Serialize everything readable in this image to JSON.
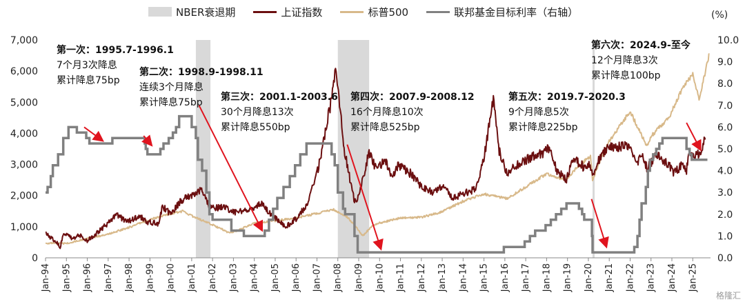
{
  "legend": {
    "recession": "NBER衰退期",
    "sse": "上证指数",
    "sp500": "标普500",
    "fed": "联邦基金目标利率（右轴）"
  },
  "right_unit": "(%)",
  "colors": {
    "recession": "#d9d9d9",
    "sse": "#6b0f10",
    "sp500": "#d8b98a",
    "fed": "#808080",
    "arrow": "#e0141e"
  },
  "annotations": [
    {
      "title": "第一次：1995.7-1996.1",
      "lines": [
        "7个月3次降息",
        "累计降息75bp"
      ]
    },
    {
      "title": "第二次：1998.9-1998.11",
      "lines": [
        "连续3个月降息",
        "累计降息75bp"
      ]
    },
    {
      "title": "第三次：2001.1-2003.6",
      "lines": [
        "30个月降息13次",
        "累计降息550bp"
      ]
    },
    {
      "title": "第四次：2007.9-2008.12",
      "lines": [
        "16个月降息10次",
        "累计降息525bp"
      ]
    },
    {
      "title": "第五次：2019.7-2020.3",
      "lines": [
        "9个月降息5次",
        "累计降息225bp"
      ]
    },
    {
      "title": "第六次：2024.9-至今",
      "lines": [
        "12个月降息3次",
        "累计降息100bp"
      ]
    }
  ],
  "watermark": "格隆汇",
  "chart_data": {
    "type": "line",
    "x_ticks": [
      "Jan-94",
      "Jan-95",
      "Jan-96",
      "Jan-97",
      "Jan-98",
      "Jan-99",
      "Jan-00",
      "Jan-01",
      "Jan-02",
      "Jan-03",
      "Jan-04",
      "Jan-05",
      "Jan-06",
      "Jan-07",
      "Jan-08",
      "Jan-09",
      "Jan-10",
      "Jan-11",
      "Jan-12",
      "Jan-13",
      "Jan-14",
      "Jan-15",
      "Jan-16",
      "Jan-17",
      "Jan-18",
      "Jan-19",
      "Jan-20",
      "Jan-21",
      "Jan-22",
      "Jan-23",
      "Jan-24",
      "Jan-25"
    ],
    "left_axis": {
      "ylim": [
        0,
        7000
      ],
      "ticks": [
        "0",
        "1,000",
        "2,000",
        "3,000",
        "4,000",
        "5,000",
        "6,000",
        "7,000"
      ]
    },
    "right_axis": {
      "ylim": [
        0,
        10
      ],
      "ticks": [
        "0.0",
        "1.0",
        "2.0",
        "3.0",
        "4.0",
        "5.0",
        "6.0",
        "7.0",
        "8.0",
        "9.0",
        "10.0"
      ]
    },
    "recessions": [
      [
        2001.2,
        2001.9
      ],
      [
        2008.0,
        2009.5
      ],
      [
        2020.2,
        2020.3
      ]
    ],
    "series": [
      {
        "name": "上证指数",
        "axis": "left",
        "points": [
          [
            1994.0,
            780
          ],
          [
            1994.5,
            520
          ],
          [
            1994.7,
            350
          ],
          [
            1994.9,
            800
          ],
          [
            1995.3,
            620
          ],
          [
            1995.6,
            750
          ],
          [
            1996.0,
            550
          ],
          [
            1996.5,
            820
          ],
          [
            1996.9,
            1050
          ],
          [
            1997.4,
            1400
          ],
          [
            1997.9,
            1150
          ],
          [
            1998.5,
            1350
          ],
          [
            1998.9,
            1150
          ],
          [
            1999.4,
            1100
          ],
          [
            1999.6,
            1650
          ],
          [
            2000.0,
            1400
          ],
          [
            2000.5,
            1850
          ],
          [
            2001.0,
            2000
          ],
          [
            2001.45,
            2200
          ],
          [
            2001.8,
            1700
          ],
          [
            2002.2,
            1600
          ],
          [
            2002.5,
            1650
          ],
          [
            2003.0,
            1450
          ],
          [
            2003.5,
            1500
          ],
          [
            2004.0,
            1600
          ],
          [
            2004.3,
            1750
          ],
          [
            2004.8,
            1400
          ],
          [
            2005.3,
            1100
          ],
          [
            2005.5,
            1000
          ],
          [
            2006.0,
            1250
          ],
          [
            2006.5,
            1700
          ],
          [
            2007.0,
            2700
          ],
          [
            2007.4,
            4000
          ],
          [
            2007.8,
            5500
          ],
          [
            2007.92,
            6100
          ],
          [
            2008.3,
            3500
          ],
          [
            2008.8,
            1800
          ],
          [
            2009.0,
            1950
          ],
          [
            2009.5,
            3400
          ],
          [
            2009.8,
            2900
          ],
          [
            2010.3,
            3100
          ],
          [
            2010.6,
            2500
          ],
          [
            2010.9,
            3000
          ],
          [
            2011.5,
            2700
          ],
          [
            2012.0,
            2300
          ],
          [
            2012.5,
            2100
          ],
          [
            2013.0,
            2300
          ],
          [
            2013.5,
            1950
          ],
          [
            2014.0,
            2050
          ],
          [
            2014.6,
            2200
          ],
          [
            2015.0,
            3200
          ],
          [
            2015.45,
            5150
          ],
          [
            2015.7,
            3500
          ],
          [
            2016.1,
            2700
          ],
          [
            2016.5,
            2950
          ],
          [
            2017.0,
            3150
          ],
          [
            2017.9,
            3400
          ],
          [
            2018.1,
            3500
          ],
          [
            2018.5,
            2800
          ],
          [
            2018.95,
            2500
          ],
          [
            2019.3,
            3200
          ],
          [
            2019.8,
            2900
          ],
          [
            2020.0,
            3000
          ],
          [
            2020.25,
            2700
          ],
          [
            2020.6,
            3300
          ],
          [
            2021.0,
            3550
          ],
          [
            2021.7,
            3600
          ],
          [
            2022.0,
            3500
          ],
          [
            2022.3,
            3050
          ],
          [
            2022.6,
            3300
          ],
          [
            2022.8,
            2900
          ],
          [
            2023.3,
            3300
          ],
          [
            2023.9,
            2950
          ],
          [
            2024.1,
            2700
          ],
          [
            2024.5,
            3000
          ],
          [
            2024.7,
            2750
          ],
          [
            2024.8,
            3350
          ],
          [
            2025.0,
            3250
          ],
          [
            2025.3,
            3350
          ],
          [
            2025.6,
            3800
          ]
        ]
      },
      {
        "name": "标普500",
        "axis": "left",
        "points": [
          [
            1994.0,
            470
          ],
          [
            1995.0,
            460
          ],
          [
            1996.0,
            620
          ],
          [
            1997.0,
            760
          ],
          [
            1998.0,
            980
          ],
          [
            1999.0,
            1230
          ],
          [
            2000.0,
            1420
          ],
          [
            2000.6,
            1500
          ],
          [
            2001.0,
            1350
          ],
          [
            2001.7,
            1150
          ],
          [
            2002.5,
            900
          ],
          [
            2002.8,
            800
          ],
          [
            2003.2,
            880
          ],
          [
            2004.0,
            1120
          ],
          [
            2005.0,
            1190
          ],
          [
            2006.0,
            1280
          ],
          [
            2007.0,
            1430
          ],
          [
            2007.8,
            1550
          ],
          [
            2008.5,
            1280
          ],
          [
            2009.0,
            880
          ],
          [
            2009.2,
            700
          ],
          [
            2009.6,
            1000
          ],
          [
            2010.0,
            1120
          ],
          [
            2011.0,
            1280
          ],
          [
            2012.0,
            1300
          ],
          [
            2013.0,
            1480
          ],
          [
            2014.0,
            1820
          ],
          [
            2015.0,
            2050
          ],
          [
            2016.1,
            1900
          ],
          [
            2017.0,
            2280
          ],
          [
            2018.0,
            2700
          ],
          [
            2018.95,
            2500
          ],
          [
            2019.5,
            2950
          ],
          [
            2020.1,
            3250
          ],
          [
            2020.2,
            2500
          ],
          [
            2020.6,
            3200
          ],
          [
            2021.0,
            3750
          ],
          [
            2022.0,
            4700
          ],
          [
            2022.8,
            3600
          ],
          [
            2023.0,
            3900
          ],
          [
            2023.9,
            4550
          ],
          [
            2024.5,
            5450
          ],
          [
            2025.0,
            5900
          ],
          [
            2025.3,
            5100
          ],
          [
            2025.8,
            6550
          ]
        ]
      },
      {
        "name": "联邦基金目标利率（右轴）",
        "axis": "right",
        "steps": [
          [
            1994.0,
            3.0
          ],
          [
            1994.1,
            3.25
          ],
          [
            1994.25,
            3.75
          ],
          [
            1994.35,
            4.25
          ],
          [
            1994.6,
            4.75
          ],
          [
            1994.85,
            5.5
          ],
          [
            1995.1,
            6.0
          ],
          [
            1995.5,
            5.75
          ],
          [
            1995.95,
            5.5
          ],
          [
            1996.1,
            5.25
          ],
          [
            1997.2,
            5.5
          ],
          [
            1998.75,
            5.25
          ],
          [
            1998.8,
            5.0
          ],
          [
            1998.88,
            4.75
          ],
          [
            1999.5,
            5.0
          ],
          [
            1999.65,
            5.25
          ],
          [
            1999.9,
            5.5
          ],
          [
            2000.1,
            5.75
          ],
          [
            2000.25,
            6.0
          ],
          [
            2000.4,
            6.5
          ],
          [
            2001.0,
            6.0
          ],
          [
            2001.2,
            5.5
          ],
          [
            2001.3,
            4.5
          ],
          [
            2001.5,
            4.0
          ],
          [
            2001.7,
            3.0
          ],
          [
            2001.85,
            2.0
          ],
          [
            2002.0,
            1.75
          ],
          [
            2002.9,
            1.25
          ],
          [
            2003.5,
            1.0
          ],
          [
            2004.5,
            1.25
          ],
          [
            2004.7,
            1.75
          ],
          [
            2004.9,
            2.25
          ],
          [
            2005.1,
            2.75
          ],
          [
            2005.4,
            3.25
          ],
          [
            2005.7,
            3.75
          ],
          [
            2005.95,
            4.25
          ],
          [
            2006.2,
            4.75
          ],
          [
            2006.5,
            5.25
          ],
          [
            2007.7,
            4.75
          ],
          [
            2007.85,
            4.25
          ],
          [
            2008.0,
            3.0
          ],
          [
            2008.25,
            2.25
          ],
          [
            2008.35,
            2.0
          ],
          [
            2008.8,
            1.0
          ],
          [
            2008.95,
            0.25
          ],
          [
            2015.95,
            0.5
          ],
          [
            2016.95,
            0.75
          ],
          [
            2017.2,
            1.0
          ],
          [
            2017.45,
            1.25
          ],
          [
            2017.95,
            1.5
          ],
          [
            2018.2,
            1.75
          ],
          [
            2018.45,
            2.0
          ],
          [
            2018.7,
            2.25
          ],
          [
            2018.95,
            2.5
          ],
          [
            2019.55,
            2.25
          ],
          [
            2019.7,
            2.0
          ],
          [
            2019.8,
            1.75
          ],
          [
            2020.17,
            1.0
          ],
          [
            2020.2,
            0.25
          ],
          [
            2022.2,
            0.5
          ],
          [
            2022.35,
            1.0
          ],
          [
            2022.45,
            1.75
          ],
          [
            2022.55,
            2.5
          ],
          [
            2022.75,
            3.25
          ],
          [
            2022.85,
            4.0
          ],
          [
            2022.95,
            4.5
          ],
          [
            2023.1,
            4.75
          ],
          [
            2023.25,
            5.0
          ],
          [
            2023.4,
            5.25
          ],
          [
            2023.55,
            5.5
          ],
          [
            2024.7,
            5.0
          ],
          [
            2024.85,
            4.75
          ],
          [
            2024.95,
            4.5
          ],
          [
            2025.7,
            4.5
          ]
        ]
      }
    ]
  }
}
